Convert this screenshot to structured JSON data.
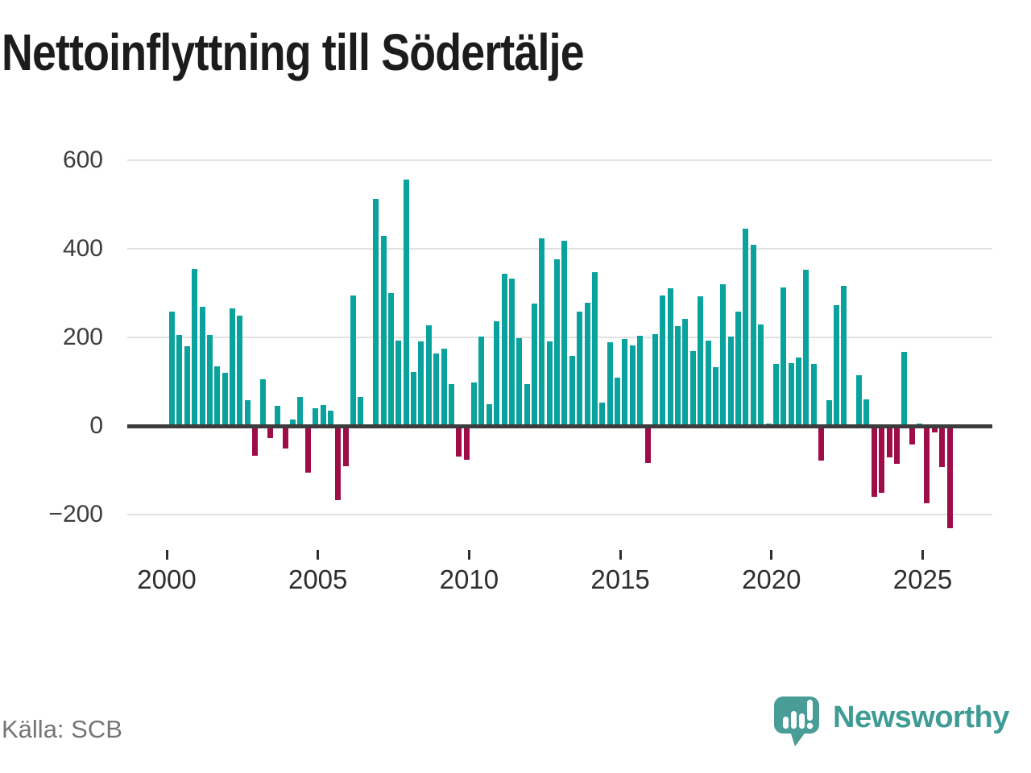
{
  "title": "Nettoinflyttning till Södertälje",
  "source": {
    "label": "Källa: SCB"
  },
  "branding": {
    "logo_text": "Newsworthy",
    "logo_icon": "bar-chart-speech-bubble-icon",
    "logo_color": "#4a9d96"
  },
  "colors": {
    "positive": "#0aa29c",
    "negative": "#9e0d48",
    "gridline": "#e2e2e2",
    "zero_axis": "#3c3c3c",
    "axis_text": "#3d3d3d",
    "title_text": "#1c1c1c",
    "source_text": "#757575"
  },
  "chart_data": {
    "type": "bar",
    "title": "Nettoinflyttning till Södertälje",
    "xlabel": "",
    "ylabel": "",
    "ylim": [
      -280,
      620
    ],
    "yticks": [
      600,
      400,
      200,
      0,
      -200
    ],
    "ytick_labels": [
      "600",
      "400",
      "200",
      "0",
      "−200"
    ],
    "xticks": [
      "2000",
      "2005",
      "2010",
      "2015",
      "2020",
      "2025"
    ],
    "grid": true,
    "legend": "none",
    "x": [
      "2000 Q1",
      "2000 Q2",
      "2000 Q3",
      "2000 Q4",
      "2001 Q1",
      "2001 Q2",
      "2001 Q3",
      "2001 Q4",
      "2002 Q1",
      "2002 Q2",
      "2002 Q3",
      "2002 Q4",
      "2003 Q1",
      "2003 Q2",
      "2003 Q3",
      "2003 Q4",
      "2004 Q1",
      "2004 Q2",
      "2004 Q3",
      "2004 Q4",
      "2005 Q1",
      "2005 Q2",
      "2005 Q3",
      "2005 Q4",
      "2006 Q1",
      "2006 Q2",
      "2006 Q3",
      "2006 Q4",
      "2007 Q1",
      "2007 Q2",
      "2007 Q3",
      "2007 Q4",
      "2008 Q1",
      "2008 Q2",
      "2008 Q3",
      "2008 Q4",
      "2009 Q1",
      "2009 Q2",
      "2009 Q3",
      "2009 Q4",
      "2010 Q1",
      "2010 Q2",
      "2010 Q3",
      "2010 Q4",
      "2011 Q1",
      "2011 Q2",
      "2011 Q3",
      "2011 Q4",
      "2012 Q1",
      "2012 Q2",
      "2012 Q3",
      "2012 Q4",
      "2013 Q1",
      "2013 Q2",
      "2013 Q3",
      "2013 Q4",
      "2014 Q1",
      "2014 Q2",
      "2014 Q3",
      "2014 Q4",
      "2015 Q1",
      "2015 Q2",
      "2015 Q3",
      "2015 Q4",
      "2016 Q1",
      "2016 Q2",
      "2016 Q3",
      "2016 Q4",
      "2017 Q1",
      "2017 Q2",
      "2017 Q3",
      "2017 Q4",
      "2018 Q1",
      "2018 Q2",
      "2018 Q3",
      "2018 Q4",
      "2019 Q1",
      "2019 Q2",
      "2019 Q3",
      "2019 Q4",
      "2020 Q1",
      "2020 Q2",
      "2020 Q3",
      "2020 Q4",
      "2021 Q1",
      "2021 Q2",
      "2021 Q3",
      "2021 Q4",
      "2022 Q1",
      "2022 Q2",
      "2022 Q3",
      "2022 Q4",
      "2023 Q1",
      "2023 Q2",
      "2023 Q3",
      "2023 Q4",
      "2024 Q1",
      "2024 Q2",
      "2024 Q3",
      "2024 Q4",
      "2025 Q1",
      "2025 Q2",
      "2025 Q3",
      "2025 Q4"
    ],
    "values": [
      258,
      205,
      180,
      355,
      270,
      205,
      135,
      120,
      265,
      250,
      58,
      -67,
      105,
      -27,
      45,
      -50,
      15,
      65,
      -105,
      40,
      48,
      35,
      -168,
      -90,
      295,
      65,
      0,
      513,
      430,
      300,
      193,
      557,
      121,
      191,
      227,
      163,
      175,
      95,
      -69,
      -76,
      98,
      202,
      49,
      237,
      344,
      333,
      199,
      94,
      277,
      424,
      191,
      376,
      418,
      158,
      258,
      279,
      347,
      53,
      190,
      109,
      196,
      182,
      204,
      -83,
      208,
      295,
      311,
      226,
      242,
      170,
      293,
      193,
      133,
      320,
      202,
      258,
      445,
      410,
      230,
      5,
      140,
      313,
      141,
      155,
      352,
      140,
      -78,
      58,
      272,
      317,
      0,
      114,
      60,
      -160,
      -150,
      -70,
      -85,
      167,
      -42,
      5,
      -175,
      -15,
      -93,
      -230
    ],
    "positive_color": "#0aa29c",
    "negative_color": "#9e0d48"
  },
  "layout_note": "quarterly bars, teal positive / maroon negative"
}
